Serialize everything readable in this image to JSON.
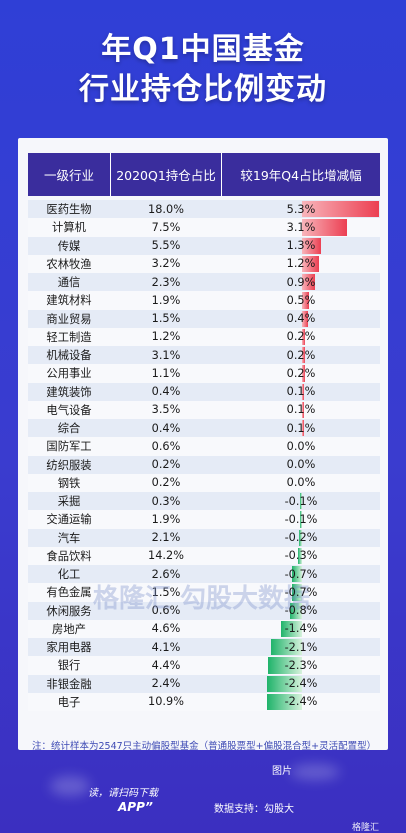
{
  "title": {
    "line1": "年Q1中国基金",
    "line2": "行业持仓比例变动"
  },
  "table": {
    "headers": [
      "一级行业",
      "2020Q1持仓占比",
      "较19年Q4占比增减幅"
    ],
    "rows": [
      {
        "industry": "医药生物",
        "share": "18.0%",
        "change": "5.3%",
        "delta": 5.3
      },
      {
        "industry": "计算机",
        "share": "7.5%",
        "change": "3.1%",
        "delta": 3.1
      },
      {
        "industry": "传媒",
        "share": "5.5%",
        "change": "1.3%",
        "delta": 1.3
      },
      {
        "industry": "农林牧渔",
        "share": "3.2%",
        "change": "1.2%",
        "delta": 1.2
      },
      {
        "industry": "通信",
        "share": "2.3%",
        "change": "0.9%",
        "delta": 0.9
      },
      {
        "industry": "建筑材料",
        "share": "1.9%",
        "change": "0.5%",
        "delta": 0.5
      },
      {
        "industry": "商业贸易",
        "share": "1.5%",
        "change": "0.4%",
        "delta": 0.4
      },
      {
        "industry": "轻工制造",
        "share": "1.2%",
        "change": "0.2%",
        "delta": 0.2
      },
      {
        "industry": "机械设备",
        "share": "3.1%",
        "change": "0.2%",
        "delta": 0.2
      },
      {
        "industry": "公用事业",
        "share": "1.1%",
        "change": "0.2%",
        "delta": 0.2
      },
      {
        "industry": "建筑装饰",
        "share": "0.4%",
        "change": "0.1%",
        "delta": 0.1
      },
      {
        "industry": "电气设备",
        "share": "3.5%",
        "change": "0.1%",
        "delta": 0.1
      },
      {
        "industry": "综合",
        "share": "0.4%",
        "change": "0.1%",
        "delta": 0.1
      },
      {
        "industry": "国防军工",
        "share": "0.6%",
        "change": "0.0%",
        "delta": 0.0
      },
      {
        "industry": "纺织服装",
        "share": "0.2%",
        "change": "0.0%",
        "delta": 0.0
      },
      {
        "industry": "钢铁",
        "share": "0.2%",
        "change": "0.0%",
        "delta": 0.0
      },
      {
        "industry": "采掘",
        "share": "0.3%",
        "change": "-0.1%",
        "delta": -0.1
      },
      {
        "industry": "交通运输",
        "share": "1.9%",
        "change": "-0.1%",
        "delta": -0.1
      },
      {
        "industry": "汽车",
        "share": "2.1%",
        "change": "-0.2%",
        "delta": -0.2
      },
      {
        "industry": "食品饮料",
        "share": "14.2%",
        "change": "-0.3%",
        "delta": -0.3
      },
      {
        "industry": "化工",
        "share": "2.6%",
        "change": "-0.7%",
        "delta": -0.7
      },
      {
        "industry": "有色金属",
        "share": "1.5%",
        "change": "-0.7%",
        "delta": -0.7
      },
      {
        "industry": "休闲服务",
        "share": "0.6%",
        "change": "-0.8%",
        "delta": -0.8
      },
      {
        "industry": "房地产",
        "share": "4.6%",
        "change": "-1.4%",
        "delta": -1.4
      },
      {
        "industry": "家用电器",
        "share": "4.1%",
        "change": "-2.1%",
        "delta": -2.1
      },
      {
        "industry": "银行",
        "share": "4.4%",
        "change": "-2.3%",
        "delta": -2.3
      },
      {
        "industry": "非银金融",
        "share": "2.4%",
        "change": "-2.4%",
        "delta": -2.4
      },
      {
        "industry": "电子",
        "share": "10.9%",
        "change": "-2.4%",
        "delta": -2.4
      }
    ]
  },
  "note": "注：统计样本为2547只主动偏股型基金（普通股票型+偏股混合型+灵活配置型）",
  "watermark": "格隆汇 勾股大数据",
  "footer": {
    "left_text": "读，请扫码下载",
    "app_text": "APP”",
    "right_text1": "图片",
    "right_text2": "数据支持：勾股大",
    "logo_text": "格隆汇"
  },
  "colors": {
    "positive_bar": "#ec3f52",
    "negative_bar": "#1fb36a",
    "header_bg": "#3a2d9d",
    "page_bg": "#3a3ccf"
  }
}
